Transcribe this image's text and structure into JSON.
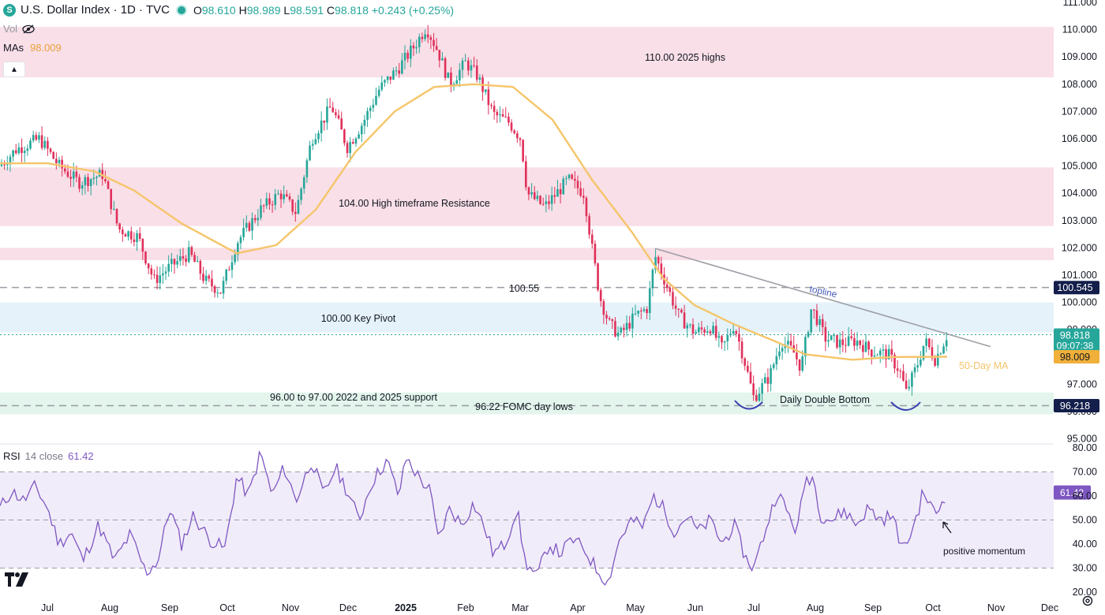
{
  "header": {
    "logo_letter": "S",
    "title": "U.S. Dollar Index · 1D · TVC",
    "open_label": "O",
    "open": "98.610",
    "high_label": "H",
    "high": "98.989",
    "low_label": "L",
    "low": "98.591",
    "close_label": "C",
    "close": "98.818",
    "change": "+0.243 (+0.25%)",
    "vol_label": "Vol",
    "mas_label": "MAs",
    "mas_value": "98.009",
    "collapse_icon": "chevron-up-icon"
  },
  "price_axis": {
    "ticks": [
      "111.000",
      "110.000",
      "109.000",
      "108.000",
      "107.000",
      "106.000",
      "105.000",
      "104.000",
      "103.000",
      "102.000",
      "101.000",
      "100.000",
      "99.000",
      "98.000",
      "97.000",
      "96.000",
      "95.000"
    ],
    "badges": [
      {
        "name": "badge-100-545",
        "text": "100.545",
        "value": 100.545,
        "color": "#131e4b"
      },
      {
        "name": "badge-last-price",
        "text": "98.818",
        "sub": "09:07:38",
        "value": 98.818,
        "color": "#26a69a"
      },
      {
        "name": "badge-ma",
        "text": "98.009",
        "value": 98.009,
        "color": "#f0b03a"
      },
      {
        "name": "badge-96-218",
        "text": "96.218",
        "value": 96.218,
        "color": "#131e4b"
      }
    ]
  },
  "zones": [
    {
      "name": "zone-2025-highs",
      "label": "110.00 2025 highs",
      "from": 108.25,
      "to": 110.1,
      "color": "#f9dfe7"
    },
    {
      "name": "zone-htf-resistance",
      "label": "104.00 High timeframe Resistance",
      "from": 102.8,
      "to": 104.95,
      "color": "#f9dfe7"
    },
    {
      "name": "zone-102",
      "label": "",
      "from": 101.55,
      "to": 102.0,
      "color": "#f9dfe7"
    },
    {
      "name": "zone-key-pivot",
      "label": "100.00 Key Pivot",
      "from": 98.9,
      "to": 100.0,
      "color": "#e5f2f9"
    },
    {
      "name": "zone-support",
      "label": "96.00 to 97.00 2022 and 2025 support",
      "from": 95.9,
      "to": 96.7,
      "color": "#e3f5ec"
    }
  ],
  "annotations": {
    "level_100_55": "100.55",
    "fomc_lows": "96.22 FOMC day lows",
    "double_bottom": "Daily Double Bottom",
    "topline": "topline",
    "ma_label": "50-Day MA",
    "positive_momentum": "positive momentum"
  },
  "rsi": {
    "label": "RSI",
    "settings": "14 close",
    "value": "61.42",
    "ticks": [
      "80.00",
      "70.00",
      "60.00",
      "50.00",
      "40.00",
      "30.00",
      "20.00"
    ]
  },
  "time_axis": [
    "Jul",
    "Aug",
    "Sep",
    "Oct",
    "Nov",
    "Dec",
    "2025",
    "Feb",
    "Mar",
    "Apr",
    "May",
    "Jun",
    "Jul",
    "Aug",
    "Sep",
    "Oct",
    "Nov",
    "Dec"
  ],
  "colors": {
    "up": "#26a69a",
    "down": "#e0305a",
    "ma": "#f5c56a",
    "rsi": "#7e57c2",
    "topline": "#9e9ea6"
  },
  "chart_data": {
    "type": "candlestick",
    "title": "U.S. Dollar Index · 1D · TVC",
    "series": [
      {
        "name": "DXY",
        "key_points": [
          {
            "x": "Jul",
            "y": 105.3
          },
          {
            "x": "Jul",
            "y": 106.0
          },
          {
            "x": "Aug",
            "y": 104.2
          },
          {
            "x": "Aug",
            "y": 102.2
          },
          {
            "x": "Sep",
            "y": 100.7
          },
          {
            "x": "Sep",
            "y": 101.6
          },
          {
            "x": "Oct",
            "y": 100.4
          },
          {
            "x": "Oct",
            "y": 103.0
          },
          {
            "x": "Nov",
            "y": 105.0
          },
          {
            "x": "Nov",
            "y": 107.0
          },
          {
            "x": "Dec",
            "y": 106.2
          },
          {
            "x": "Dec",
            "y": 108.2
          },
          {
            "x": "2025",
            "y": 109.8
          },
          {
            "x": "2025",
            "y": 110.1
          },
          {
            "x": "Feb",
            "y": 108.3
          },
          {
            "x": "Feb",
            "y": 107.3
          },
          {
            "x": "Mar",
            "y": 106.5
          },
          {
            "x": "Mar",
            "y": 103.8
          },
          {
            "x": "Apr",
            "y": 104.1
          },
          {
            "x": "Apr",
            "y": 101.0
          },
          {
            "x": "Apr",
            "y": 99.2
          },
          {
            "x": "May",
            "y": 99.6
          },
          {
            "x": "May",
            "y": 101.6
          },
          {
            "x": "Jun",
            "y": 98.6
          },
          {
            "x": "Jul",
            "y": 96.5
          },
          {
            "x": "Jul",
            "y": 97.8
          },
          {
            "x": "Aug",
            "y": 100.0
          },
          {
            "x": "Aug",
            "y": 98.2
          },
          {
            "x": "Sep",
            "y": 97.6
          },
          {
            "x": "Sep",
            "y": 96.4
          },
          {
            "x": "Oct",
            "y": 98.0
          },
          {
            "x": "Oct",
            "y": 98.82
          }
        ]
      },
      {
        "name": "MAs",
        "key_points": [
          {
            "x": "Jul",
            "y": 105.1
          },
          {
            "x": "Aug",
            "y": 104.7
          },
          {
            "x": "Sep",
            "y": 102.8
          },
          {
            "x": "Oct",
            "y": 101.9
          },
          {
            "x": "Nov",
            "y": 103.5
          },
          {
            "x": "Dec",
            "y": 105.8
          },
          {
            "x": "2025",
            "y": 107.9
          },
          {
            "x": "Feb",
            "y": 108.0
          },
          {
            "x": "Mar",
            "y": 106.8
          },
          {
            "x": "Apr",
            "y": 104.5
          },
          {
            "x": "May",
            "y": 101.6
          },
          {
            "x": "Jun",
            "y": 99.5
          },
          {
            "x": "Jul",
            "y": 98.6
          },
          {
            "x": "Aug",
            "y": 97.9
          },
          {
            "x": "Sep",
            "y": 98.0
          },
          {
            "x": "Oct",
            "y": 98.01
          }
        ]
      },
      {
        "name": "RSI",
        "key_points": [
          {
            "x": "Jul",
            "y": 55
          },
          {
            "x": "Aug",
            "y": 33
          },
          {
            "x": "Sep",
            "y": 32
          },
          {
            "x": "Oct",
            "y": 40
          },
          {
            "x": "Nov",
            "y": 72
          },
          {
            "x": "Dec",
            "y": 55
          },
          {
            "x": "2025",
            "y": 73
          },
          {
            "x": "Feb",
            "y": 60
          },
          {
            "x": "Mar",
            "y": 35
          },
          {
            "x": "Apr",
            "y": 28
          },
          {
            "x": "May",
            "y": 60
          },
          {
            "x": "Jun",
            "y": 44
          },
          {
            "x": "Jul",
            "y": 31
          },
          {
            "x": "Aug",
            "y": 68
          },
          {
            "x": "Sep",
            "y": 45
          },
          {
            "x": "Oct",
            "y": 61.42
          }
        ]
      }
    ],
    "ylim": [
      95,
      111
    ],
    "rsi_ylim": [
      20,
      80
    ]
  }
}
